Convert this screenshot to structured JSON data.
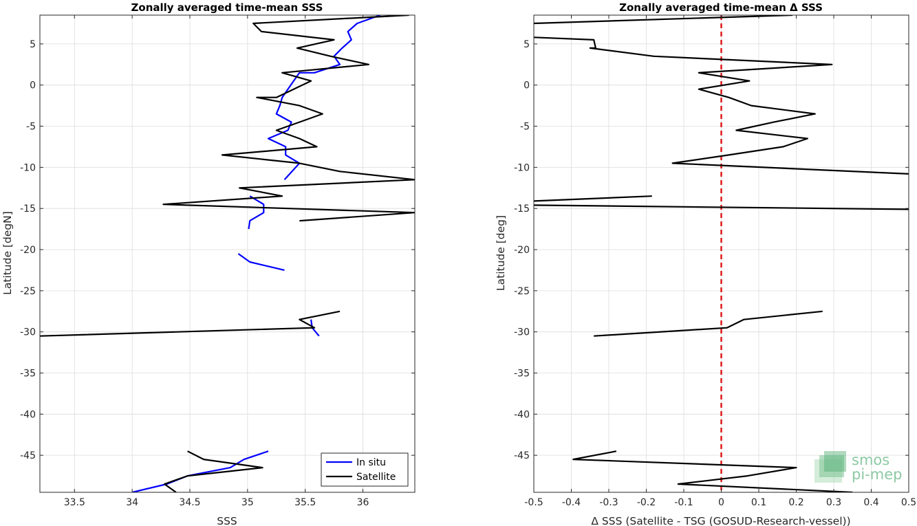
{
  "chart_data": [
    {
      "type": "line",
      "title": "Zonally averaged time-mean SSS",
      "xlabel": "SSS",
      "ylabel": "Latitude [degN]",
      "xlim": [
        33.2,
        36.45
      ],
      "ylim": [
        -49.5,
        8.5
      ],
      "xticks": [
        33.5,
        34,
        34.5,
        35,
        35.5,
        36
      ],
      "yticks": [
        5,
        0,
        -5,
        -10,
        -15,
        -20,
        -25,
        -30,
        -35,
        -40,
        -45
      ],
      "grid": true,
      "legend": "bottom-right",
      "series": [
        {
          "name": "In situ",
          "color": "#0000ff",
          "segments": [
            [
              [
                36.15,
                8.5
              ],
              [
                35.95,
                7.5
              ],
              [
                35.87,
                6.5
              ],
              [
                35.9,
                5.5
              ],
              [
                35.82,
                4.5
              ],
              [
                35.75,
                3.5
              ],
              [
                35.8,
                2.5
              ],
              [
                35.58,
                1.5
              ],
              [
                35.45,
                1.5
              ],
              [
                35.4,
                0.5
              ],
              [
                35.35,
                -0.5
              ],
              [
                35.3,
                -1.5
              ],
              [
                35.28,
                -2.5
              ],
              [
                35.25,
                -3.5
              ],
              [
                35.38,
                -4.5
              ],
              [
                35.35,
                -5.5
              ],
              [
                35.18,
                -6.5
              ],
              [
                35.33,
                -7.5
              ],
              [
                35.33,
                -8.5
              ],
              [
                35.45,
                -9.5
              ],
              [
                35.32,
                -11.5
              ]
            ],
            [
              [
                35.02,
                -13.5
              ],
              [
                35.14,
                -14.5
              ],
              [
                35.14,
                -15.5
              ],
              [
                35.02,
                -16.5
              ],
              [
                35.01,
                -17.5
              ]
            ],
            [
              [
                34.92,
                -20.5
              ],
              [
                35.02,
                -21.5
              ],
              [
                35.32,
                -22.5
              ]
            ],
            [
              [
                35.55,
                -28.5
              ],
              [
                35.56,
                -29.5
              ],
              [
                35.62,
                -30.5
              ]
            ],
            [
              [
                35.18,
                -44.5
              ],
              [
                34.97,
                -45.5
              ],
              [
                34.85,
                -46.5
              ],
              [
                34.48,
                -47.5
              ],
              [
                34.3,
                -48.5
              ],
              [
                34.0,
                -49.5
              ]
            ]
          ]
        },
        {
          "name": "Satellite",
          "color": "#000000",
          "segments": [
            [
              [
                36.4,
                8.5
              ],
              [
                35.05,
                7.5
              ],
              [
                35.12,
                6.5
              ],
              [
                35.75,
                5.5
              ],
              [
                35.43,
                4.5
              ],
              [
                35.72,
                3.5
              ],
              [
                36.05,
                2.5
              ],
              [
                35.3,
                1.5
              ],
              [
                35.55,
                0.5
              ],
              [
                35.4,
                -0.5
              ],
              [
                35.25,
                -1.5
              ],
              [
                35.08,
                -1.5
              ],
              [
                35.45,
                -2.5
              ],
              [
                35.65,
                -3.5
              ],
              [
                35.45,
                -4.5
              ],
              [
                35.25,
                -5.5
              ],
              [
                35.45,
                -6.5
              ],
              [
                35.6,
                -7.5
              ],
              [
                34.78,
                -8.5
              ],
              [
                35.45,
                -9.5
              ],
              [
                35.8,
                -10.5
              ],
              [
                36.45,
                -11.5
              ],
              [
                34.93,
                -12.5
              ],
              [
                35.3,
                -13.5
              ],
              [
                34.27,
                -14.5
              ],
              [
                36.45,
                -15.5
              ],
              [
                35.45,
                -16.5
              ]
            ],
            [
              [
                35.8,
                -27.5
              ],
              [
                35.45,
                -28.5
              ],
              [
                35.58,
                -29.5
              ],
              [
                33.2,
                -30.5
              ]
            ],
            [
              [
                34.48,
                -44.5
              ],
              [
                34.62,
                -45.5
              ],
              [
                35.13,
                -46.5
              ],
              [
                34.48,
                -47.5
              ],
              [
                34.28,
                -48.5
              ],
              [
                34.38,
                -49.5
              ]
            ]
          ]
        }
      ]
    },
    {
      "type": "line",
      "title": "Zonally averaged time-mean Δ SSS",
      "xlabel": "Δ SSS (Satellite - TSG (GOSUD-Research-vessel))",
      "ylabel": "Latitude [deg]",
      "xlim": [
        -0.5,
        0.5
      ],
      "ylim": [
        -49.5,
        8.5
      ],
      "xticks": [
        -0.5,
        -0.4,
        -0.3,
        -0.2,
        -0.1,
        0,
        0.1,
        0.2,
        0.3,
        0.4,
        0.5
      ],
      "xticklabels": [
        "-0.5",
        "-0.4",
        "-0.3",
        "-0.2",
        "-0.1",
        "0",
        "0.1",
        "0.2",
        "0.3",
        "0.4",
        "0.5"
      ],
      "yticks": [
        5,
        0,
        -5,
        -10,
        -15,
        -20,
        -25,
        -30,
        -35,
        -40,
        -45
      ],
      "grid": true,
      "reference_line": {
        "x": 0,
        "color": "#dd1111",
        "style": "dashed"
      },
      "series": [
        {
          "color": "#000000",
          "segments": [
            [
              [
                0.19,
                8.5
              ],
              [
                -0.5,
                7.5
              ]
            ],
            [
              [
                -0.5,
                5.8
              ],
              [
                -0.34,
                5.5
              ],
              [
                -0.335,
                4.5
              ],
              [
                -0.35,
                4.5
              ],
              [
                -0.18,
                3.5
              ],
              [
                0.295,
                2.5
              ],
              [
                -0.06,
                1.5
              ],
              [
                0.075,
                0.5
              ],
              [
                -0.06,
                -0.5
              ],
              [
                0.02,
                -1.5
              ],
              [
                0.08,
                -2.5
              ],
              [
                0.25,
                -3.5
              ],
              [
                0.14,
                -4.5
              ],
              [
                0.04,
                -5.5
              ],
              [
                0.23,
                -6.5
              ],
              [
                0.165,
                -7.5
              ],
              [
                0.02,
                -8.5
              ],
              [
                -0.13,
                -9.5
              ],
              [
                0.5,
                -10.8
              ]
            ],
            [
              [
                -0.185,
                -13.5
              ],
              [
                -0.5,
                -14.1
              ]
            ],
            [
              [
                -0.5,
                -14.6
              ],
              [
                0.5,
                -15.1
              ]
            ],
            [
              [
                0.27,
                -27.5
              ],
              [
                0.06,
                -28.5
              ],
              [
                0.015,
                -29.5
              ],
              [
                -0.34,
                -30.5
              ]
            ],
            [
              [
                -0.28,
                -44.5
              ],
              [
                -0.395,
                -45.5
              ],
              [
                0.2,
                -46.5
              ],
              [
                0.07,
                -47.5
              ],
              [
                -0.115,
                -48.5
              ],
              [
                0.35,
                -49.5
              ]
            ]
          ]
        }
      ]
    }
  ],
  "logo": {
    "line1": "smos",
    "line2": "pi-mep"
  }
}
